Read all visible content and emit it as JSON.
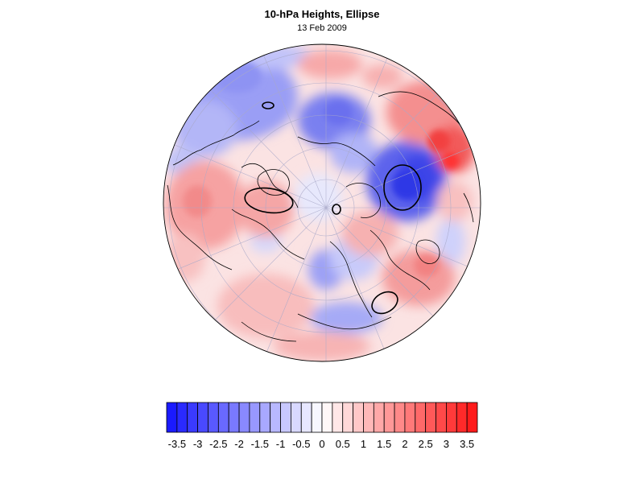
{
  "header": {
    "title": "10-hPa Heights, Ellipse",
    "subtitle": "13 Feb 2009"
  },
  "map": {
    "projection": "polar stereographic (north pole)",
    "grid": true,
    "fill_palette": "blue-white-red anomaly"
  },
  "colorbar": {
    "min": -3.75,
    "max": 3.75,
    "levels": 30,
    "tick_labels": [
      "-3.5",
      "-3",
      "-2.5",
      "-2",
      "-1.5",
      "-1",
      "-0.5",
      "0",
      "0.5",
      "1",
      "1.5",
      "2",
      "2.5",
      "3",
      "3.5"
    ],
    "tick_values": [
      -3.5,
      -3,
      -2.5,
      -2,
      -1.5,
      -1,
      -0.5,
      0,
      0.5,
      1,
      1.5,
      2,
      2.5,
      3,
      3.5
    ],
    "color_low": "#1a1aff",
    "color_mid": "#ffffff",
    "color_high": "#ff1a1a"
  }
}
